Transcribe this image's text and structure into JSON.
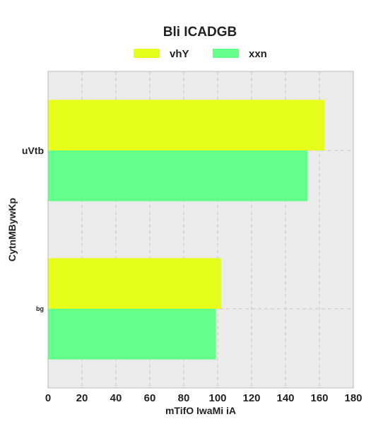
{
  "chart_data": {
    "type": "bar",
    "orientation": "horizontal",
    "title": "Bli ICADGB",
    "xlabel": "mTifO IwaMi iA",
    "ylabel": "CytnMBywKp",
    "categories": [
      "uVtb",
      "bg"
    ],
    "series": [
      {
        "name": "vhY",
        "color": "#e5ff1a",
        "values": [
          163,
          102
        ]
      },
      {
        "name": "xxn",
        "color": "#62ff8a",
        "values": [
          153,
          99
        ]
      }
    ],
    "xlim": [
      0,
      180
    ],
    "xticks": [
      "0",
      "20",
      "40",
      "60",
      "80",
      "100",
      "120",
      "140",
      "160",
      "180"
    ],
    "grid": true,
    "legend_position": "top"
  }
}
